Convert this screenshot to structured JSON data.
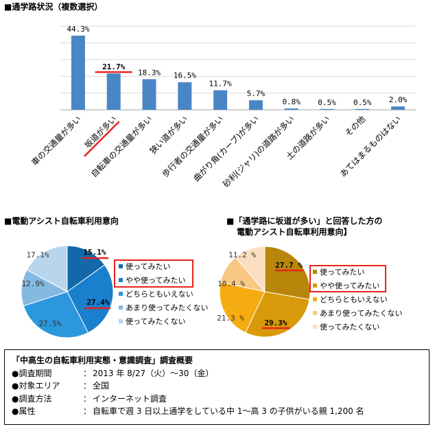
{
  "bar_section": {
    "title": "■通学路状況（複数選択）"
  },
  "pie1_section": {
    "title": "■電動アシスト自転車利用意向"
  },
  "pie2_section": {
    "title_line1": "■「通学路に坂道が多い」と回答した方の",
    "title_line2": "電動アシスト自転車利用意向】"
  },
  "chart_data": [
    {
      "type": "bar",
      "title": "■通学路状況（複数選択）",
      "categories": [
        "車の交通量が多い",
        "坂道が多い",
        "自転車の交通量が多い",
        "狭い道が多い",
        "歩行者の交通量が多い",
        "曲がり角(カーブ)が多い",
        "砂利(ジャリ)の道路が多い",
        "土の道路が多い",
        "その他",
        "あてはまるものはない"
      ],
      "values": [
        44.3,
        21.7,
        18.3,
        16.5,
        11.7,
        5.7,
        0.8,
        0.5,
        0.5,
        2.0
      ],
      "value_labels": [
        "44.3%",
        "21.7%",
        "18.3%",
        "16.5%",
        "11.7%",
        "5.7%",
        "0.8%",
        "0.5%",
        "0.5%",
        "2.0%"
      ],
      "highlight_index": 1,
      "ylim": [
        0,
        50
      ],
      "grid": true,
      "bar_color": "#4a86c6",
      "highlight_color": "#e8231a"
    },
    {
      "type": "pie",
      "title": "■電動アシスト自転車利用意向",
      "labels": [
        "使ってみたい",
        "やや使ってみたい",
        "どちらともいえない",
        "あまり使ってみたくない",
        "使ってみたくない"
      ],
      "values": [
        15.1,
        27.4,
        27.5,
        12.9,
        17.1
      ],
      "value_labels": [
        "15.1%",
        "27.4%",
        "27.5%",
        "12.9%",
        "17.1%"
      ],
      "colors": [
        "#1268a8",
        "#1a7fcc",
        "#2b97dc",
        "#84b9e2",
        "#b9d5ee"
      ],
      "highlight": [
        0,
        1
      ],
      "legend": "right"
    },
    {
      "type": "pie",
      "title": "■「通学路に坂道が多い」と回答した方の電動アシスト自転車利用意向】",
      "labels": [
        "使ってみたい",
        "やや使ってみたい",
        "どちらともいえない",
        "あまり使ってみたくない",
        "使ってみたくない"
      ],
      "values": [
        27.7,
        29.3,
        21.3,
        10.4,
        11.2
      ],
      "value_labels": [
        "27.7 %",
        "29.3%",
        "21.3 %",
        "10.4 %",
        "11.2 %"
      ],
      "colors": [
        "#b8860b",
        "#d89a0a",
        "#f5ac10",
        "#f8c884",
        "#fcddc0"
      ],
      "highlight": [
        0,
        1
      ],
      "legend": "right"
    }
  ],
  "survey": {
    "title": "「中高生の自転車利用実態・意識調査」調査概要",
    "rows": [
      {
        "key": "●調査期間",
        "colon": "：",
        "value": "2013 年 8/27（火）～30（金）"
      },
      {
        "key": "●対象エリア",
        "colon": "：",
        "value": "全国"
      },
      {
        "key": "●調査方法",
        "colon": "：",
        "value": "インターネット調査"
      },
      {
        "key": "●属性",
        "colon": "：",
        "value": "自転車で週 3 日以上通学をしている中 1～高 3 の子供がいる親 1,200 名"
      }
    ]
  }
}
